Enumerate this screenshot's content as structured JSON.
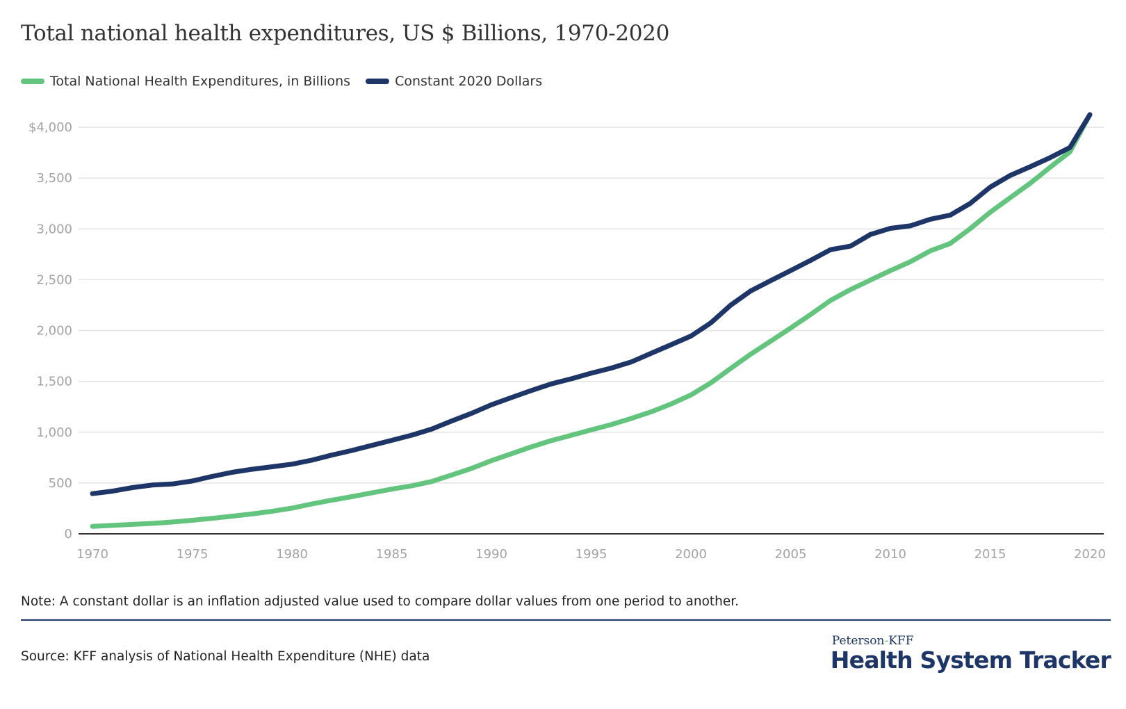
{
  "chart_data": {
    "type": "line",
    "title": "Total national health expenditures, US $ Billions, 1970-2020",
    "xlabel": "",
    "ylabel": "",
    "x": [
      1970,
      1971,
      1972,
      1973,
      1974,
      1975,
      1976,
      1977,
      1978,
      1979,
      1980,
      1981,
      1982,
      1983,
      1984,
      1985,
      1986,
      1987,
      1988,
      1989,
      1990,
      1991,
      1992,
      1993,
      1994,
      1995,
      1996,
      1997,
      1998,
      1999,
      2000,
      2001,
      2002,
      2003,
      2004,
      2005,
      2006,
      2007,
      2008,
      2009,
      2010,
      2011,
      2012,
      2013,
      2014,
      2015,
      2016,
      2017,
      2018,
      2019,
      2020
    ],
    "xlim": [
      1970,
      2020
    ],
    "ylim": [
      0,
      4200
    ],
    "x_ticks": [
      "1970",
      "1975",
      "1980",
      "1985",
      "1990",
      "1995",
      "2000",
      "2005",
      "2010",
      "2015",
      "2020"
    ],
    "y_ticks": [
      "0",
      "500",
      "1,000",
      "1,500",
      "2,000",
      "2,500",
      "3,000",
      "3,500",
      "$4,000"
    ],
    "grid": "horizontal",
    "legend_position": "top-left",
    "series": [
      {
        "name": "Total National Health Expenditures, in Billions",
        "color": "#63c57d",
        "values": [
          74.1,
          82.7,
          92.7,
          102.8,
          116.5,
          133.3,
          152.7,
          173.9,
          195.3,
          221.5,
          253.2,
          294.1,
          330.7,
          365.5,
          402.6,
          439.8,
          472.8,
          513.9,
          578.7,
          643.6,
          719.7,
          787.9,
          855.5,
          917.1,
          969.5,
          1022.3,
          1074.5,
          1134.7,
          1199.6,
          1276.6,
          1366.2,
          1485.2,
          1628.2,
          1767.6,
          1895.2,
          2024.5,
          2157.4,
          2296.1,
          2402.4,
          2496.4,
          2589.6,
          2675.9,
          2783.3,
          2855.8,
          3001.4,
          3163.4,
          3305.6,
          3446.5,
          3604.5,
          3757.4,
          4124.0
        ]
      },
      {
        "name": "Constant 2020 Dollars",
        "color": "#1d3567",
        "values": [
          395,
          420,
          455,
          480,
          490,
          520,
          565,
          605,
          635,
          660,
          685,
          725,
          775,
          820,
          870,
          920,
          970,
          1030,
          1110,
          1185,
          1270,
          1340,
          1410,
          1475,
          1525,
          1580,
          1630,
          1690,
          1775,
          1860,
          1945,
          2075,
          2250,
          2390,
          2490,
          2590,
          2690,
          2795,
          2830,
          2945,
          3005,
          3030,
          3095,
          3135,
          3250,
          3410,
          3525,
          3610,
          3700,
          3800,
          4124
        ]
      }
    ]
  },
  "note": "Note: A constant dollar is an inflation adjusted value used to compare dollar values from one period to another.",
  "source": "Source: KFF analysis of National Health Expenditure (NHE) data",
  "logo": {
    "top_left": "Peterson",
    "dash": "-",
    "top_right": "KFF",
    "main": "Health System Tracker"
  }
}
